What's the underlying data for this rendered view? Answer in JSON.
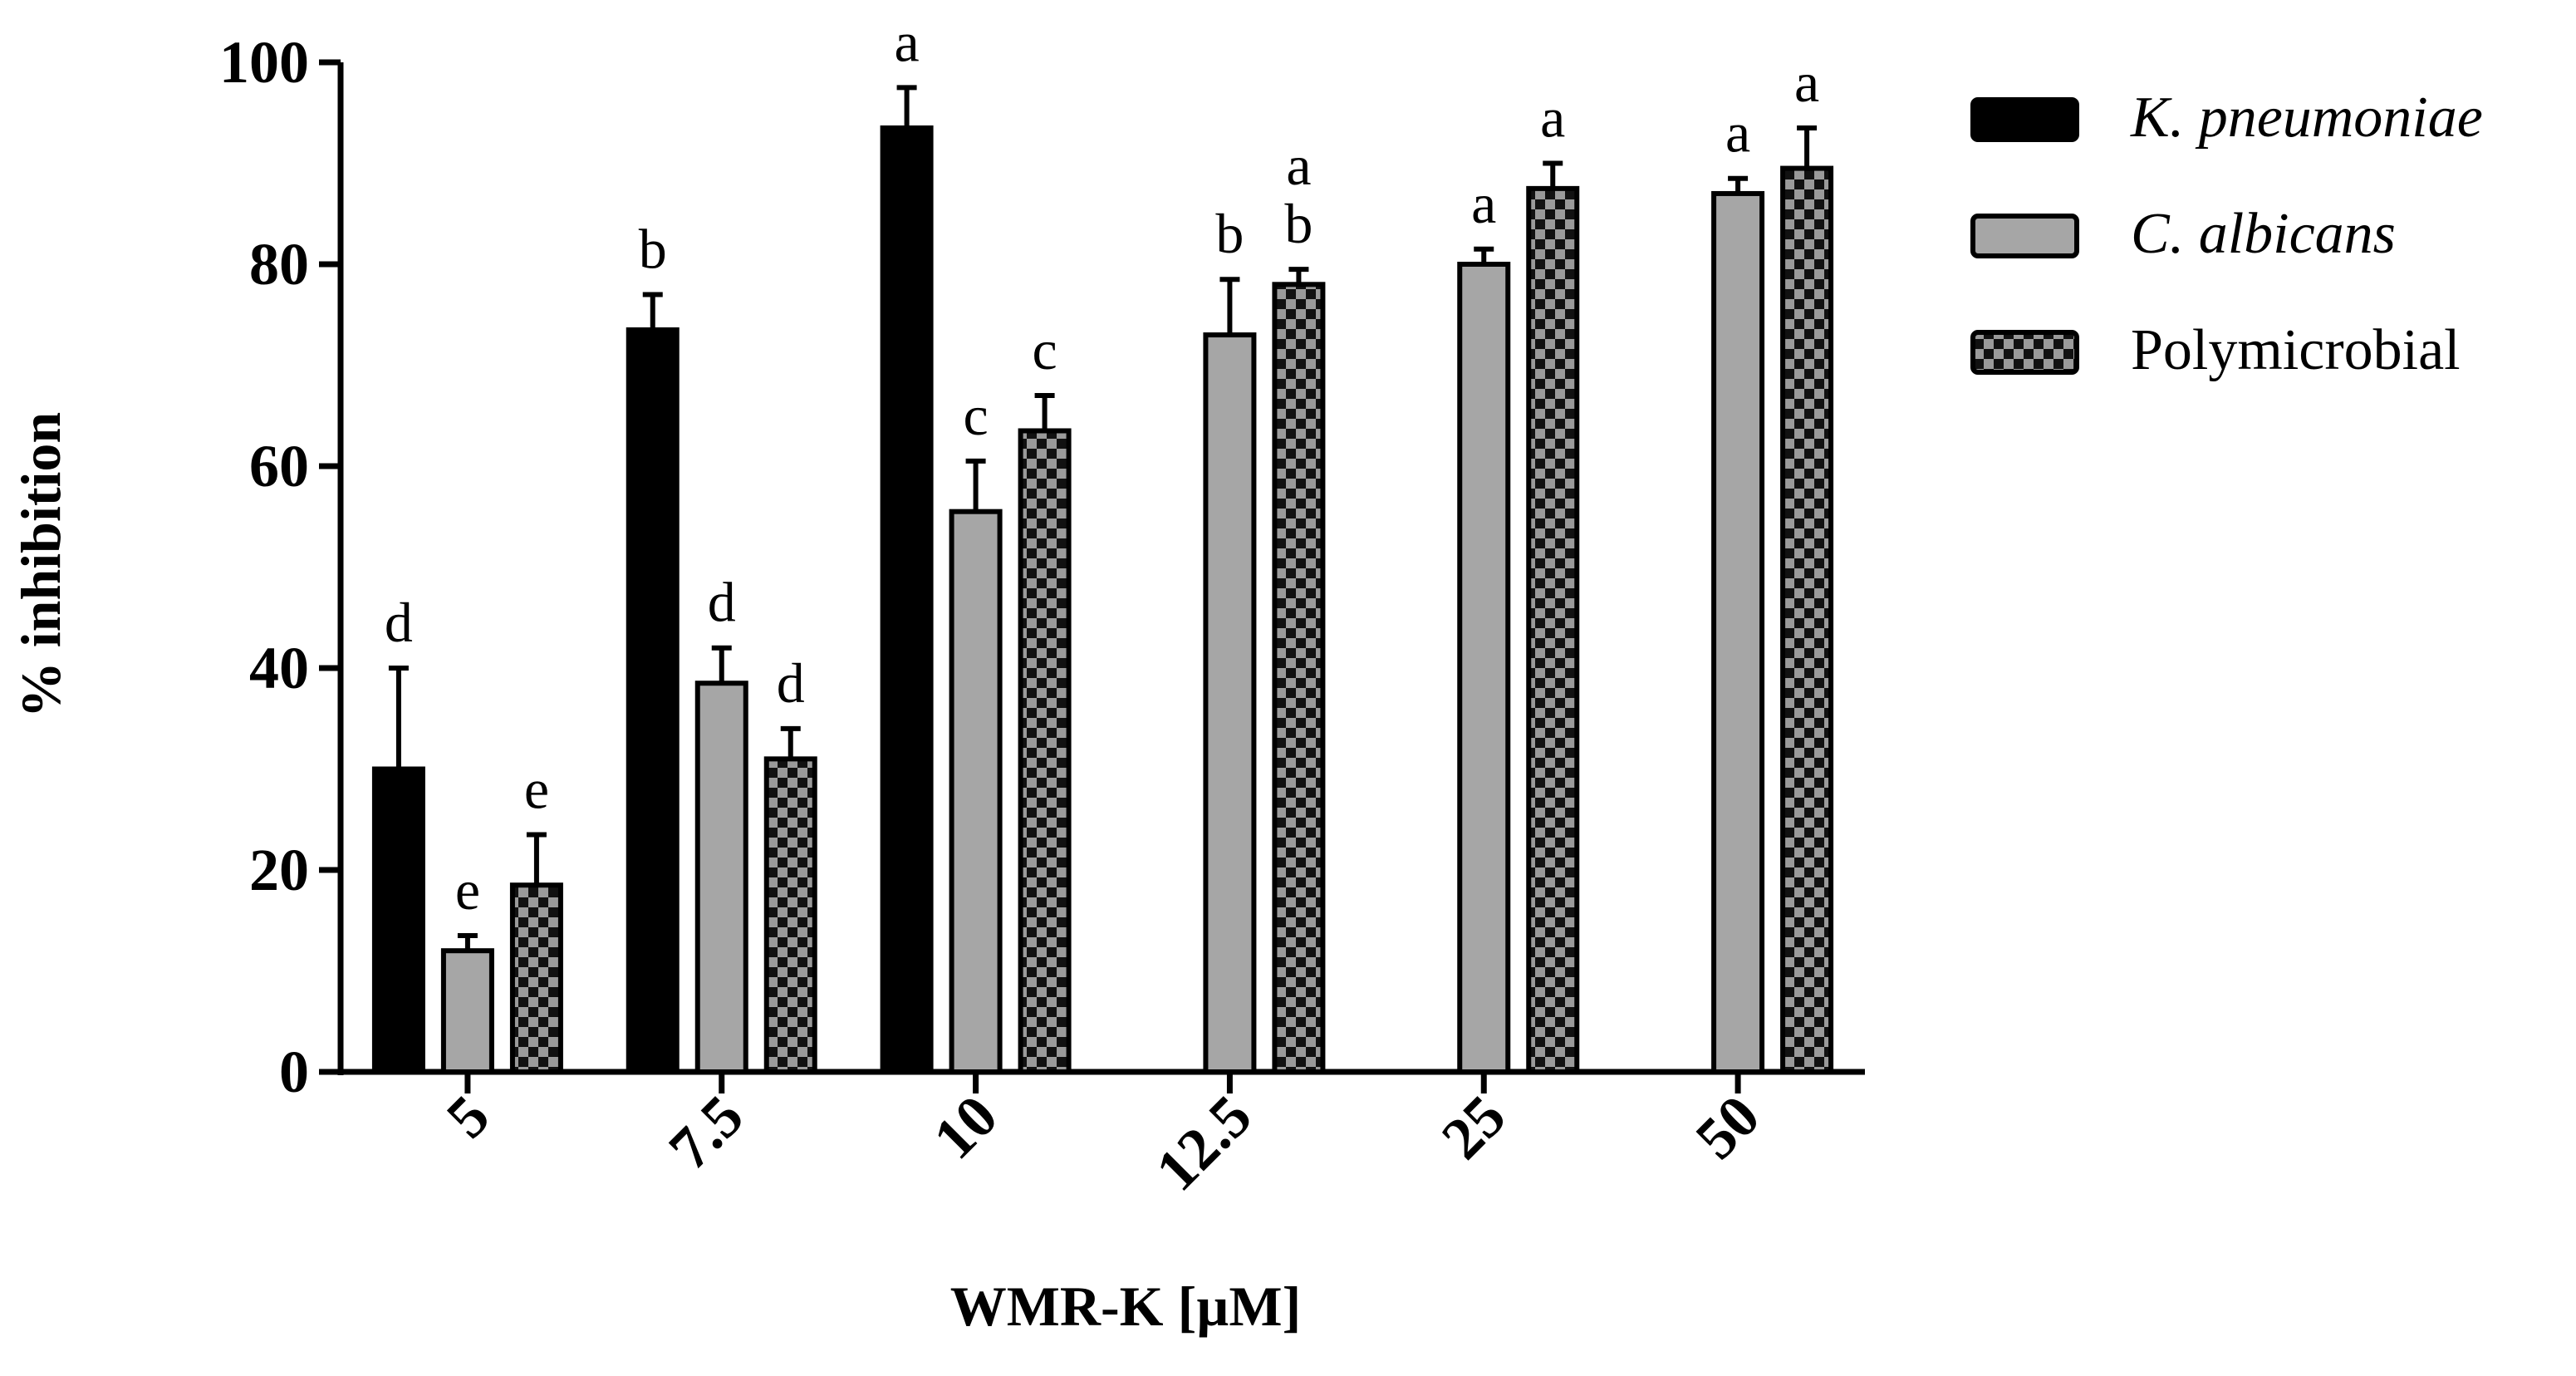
{
  "chart_data": {
    "type": "bar",
    "xlabel": "WMR-K [µM]",
    "ylabel": "% inhibition",
    "ylim": [
      0,
      100
    ],
    "yticks": [
      "0",
      "20",
      "40",
      "60",
      "80",
      "100"
    ],
    "categories": [
      "5",
      "7.5",
      "10",
      "12.5",
      "25",
      "50"
    ],
    "series": [
      {
        "name": "K. pneumoniae",
        "italic": true,
        "fill": "#000000",
        "pattern": "solid",
        "values": [
          30,
          73.5,
          93.5,
          null,
          null,
          null
        ],
        "errors": [
          10,
          3.5,
          4,
          null,
          null,
          null
        ],
        "labels": [
          "d",
          "b",
          "a",
          null,
          null,
          null
        ]
      },
      {
        "name": "C. albicans",
        "italic": true,
        "fill": "#a6a6a6",
        "pattern": "solid",
        "values": [
          12,
          38.5,
          55.5,
          73,
          80,
          87
        ],
        "errors": [
          1.5,
          3.5,
          5,
          5.5,
          1.5,
          1.5
        ],
        "labels": [
          "e",
          "d",
          "c",
          "b",
          "a",
          "a"
        ]
      },
      {
        "name": "Polymicrobial",
        "italic": false,
        "fill": "#9a9a9a",
        "pattern": "checker",
        "values": [
          18.5,
          31,
          63.5,
          78,
          87.5,
          89.5
        ],
        "errors": [
          5,
          3,
          3.5,
          1.5,
          2.5,
          4
        ],
        "labels": [
          "e",
          "d",
          "c",
          "a\nb",
          "a",
          "a"
        ]
      }
    ],
    "legend_position": "right",
    "grid": false
  }
}
